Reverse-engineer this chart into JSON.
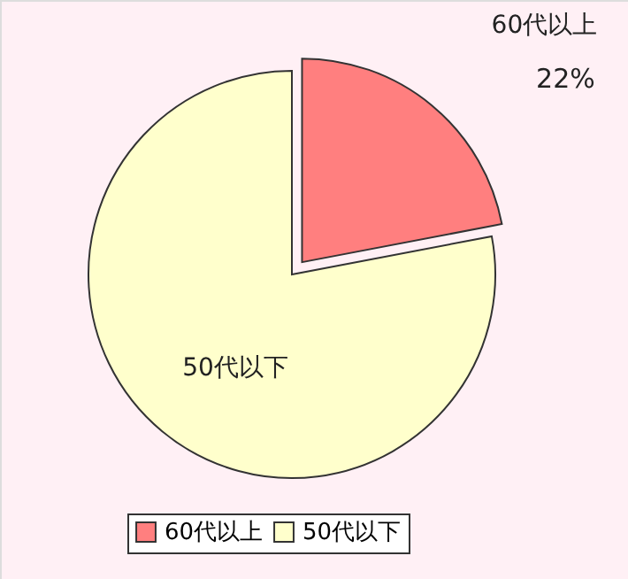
{
  "chart_data": {
    "type": "pie",
    "categories": [
      "60代以上",
      "50代以下"
    ],
    "values": [
      22,
      78
    ],
    "colors": [
      "#ff7f7f",
      "#ffffcc"
    ],
    "value_labels": [
      "22%",
      null
    ],
    "legend": "bottom"
  }
}
